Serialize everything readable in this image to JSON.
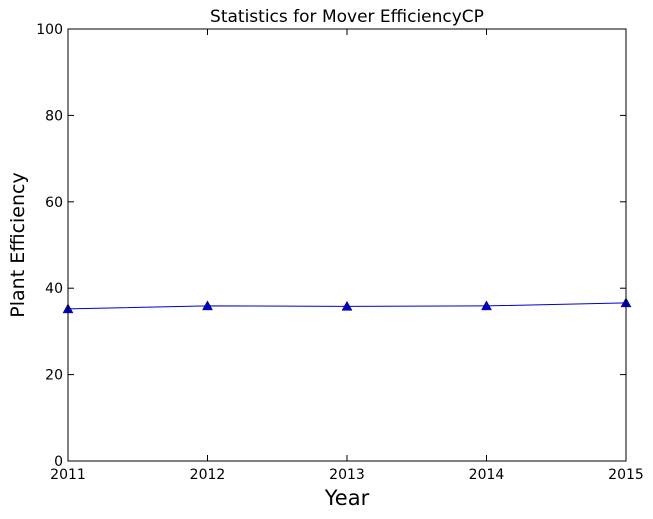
{
  "chart_data": {
    "type": "line",
    "title": "Statistics for Mover EfficiencyCP",
    "xlabel": "Year",
    "ylabel": "Plant Efficiency",
    "xlim": [
      2011,
      2015
    ],
    "ylim": [
      0,
      100
    ],
    "x_ticks": [
      "2011",
      "2012",
      "2013",
      "2014",
      "2015"
    ],
    "y_ticks": [
      "0",
      "20",
      "40",
      "60",
      "80",
      "100"
    ],
    "grid": false,
    "legend": "none",
    "series": [
      {
        "x": [
          2011,
          2012,
          2013,
          2014,
          2015
        ],
        "values": [
          35.2,
          35.9,
          35.8,
          35.9,
          36.6
        ],
        "color": "#0000cc",
        "marker": "triangle"
      }
    ]
  }
}
